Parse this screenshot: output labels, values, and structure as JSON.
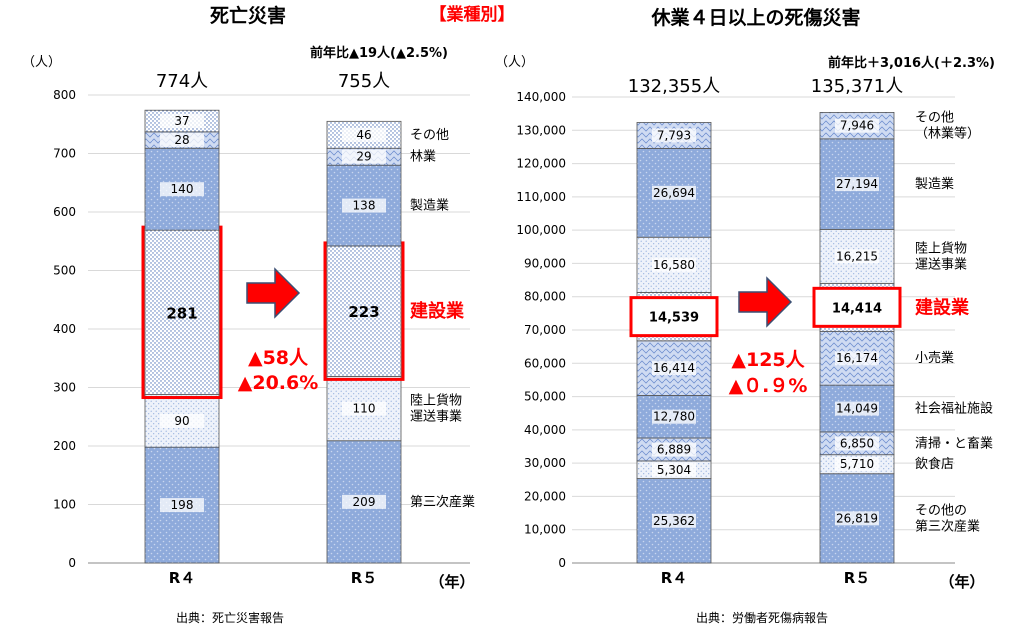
{
  "header": {
    "title_left": "死亡災害",
    "title_center": "【業種別】",
    "title_right": "休業４日以上の死傷災害"
  },
  "colors": {
    "accent_red": "#ff0000",
    "bar_blue": "#8eaadb",
    "bar_light": "#e8eef9",
    "bar_dark_line": "#2f4f8f",
    "arrow_fill": "#ff0000",
    "arrow_outline": "#3b4f73"
  },
  "chart_data": [
    {
      "type": "bar",
      "stacked": true,
      "unit_label": "（人）",
      "xunit_label": "（年）",
      "yticks": [
        "0",
        "100",
        "200",
        "300",
        "400",
        "500",
        "600",
        "700",
        "800"
      ],
      "ylim": [
        0,
        800
      ],
      "categories": [
        "R４",
        "R５"
      ],
      "totals": [
        "774人",
        "755人"
      ],
      "change_note": "前年比▲19人(▲2.5%)",
      "series": [
        {
          "name": "第三次産業",
          "values": [
            198,
            209
          ],
          "labels": [
            "198",
            "209"
          ]
        },
        {
          "name": "陸上貨物\n運送事業",
          "values": [
            90,
            110
          ],
          "labels": [
            "90",
            "110"
          ]
        },
        {
          "name": "建設業",
          "values": [
            281,
            223
          ],
          "labels": [
            "281",
            "223"
          ],
          "highlight": true
        },
        {
          "name": "製造業",
          "values": [
            140,
            138
          ],
          "labels": [
            "140",
            "138"
          ]
        },
        {
          "name": "林業",
          "values": [
            28,
            29
          ],
          "labels": [
            "28",
            "29"
          ]
        },
        {
          "name": "その他",
          "values": [
            37,
            46
          ],
          "labels": [
            "37",
            "46"
          ]
        }
      ],
      "highlight_change": [
        "▲58人",
        "▲20.6%"
      ],
      "source": "出典：死亡災害報告"
    },
    {
      "type": "bar",
      "stacked": true,
      "unit_label": "（人）",
      "xunit_label": "（年）",
      "yticks": [
        "0",
        "10,000",
        "20,000",
        "30,000",
        "40,000",
        "50,000",
        "60,000",
        "70,000",
        "80,000",
        "90,000",
        "100,000",
        "110,000",
        "120,000",
        "130,000",
        "140,000"
      ],
      "ylim": [
        0,
        140000
      ],
      "categories": [
        "R４",
        "R５"
      ],
      "totals": [
        "132,355人",
        "135,371人"
      ],
      "change_note": "前年比＋3,016人(＋2.3%)",
      "series": [
        {
          "name": "その他の\n第三次産業",
          "values": [
            25362,
            26819
          ],
          "labels": [
            "25,362",
            "26,819"
          ]
        },
        {
          "name": "飲食店",
          "values": [
            5304,
            5710
          ],
          "labels": [
            "5,304",
            "5,710"
          ]
        },
        {
          "name": "清掃・と畜業",
          "values": [
            6889,
            6850
          ],
          "labels": [
            "6,889",
            "6,850"
          ]
        },
        {
          "name": "社会福祉施設",
          "values": [
            12780,
            14049
          ],
          "labels": [
            "12,780",
            "14,049"
          ]
        },
        {
          "name": "小売業",
          "values": [
            16414,
            16174
          ],
          "labels": [
            "16,414",
            "16,174"
          ]
        },
        {
          "name": "建設業",
          "values": [
            14539,
            14414
          ],
          "labels": [
            "14,539",
            "14,414"
          ],
          "highlight": true
        },
        {
          "name": "陸上貨物\n運送事業",
          "values": [
            16580,
            16215
          ],
          "labels": [
            "16,580",
            "16,215"
          ]
        },
        {
          "name": "製造業",
          "values": [
            26694,
            27194
          ],
          "labels": [
            "26,694",
            "27,194"
          ]
        },
        {
          "name": "その他\n（林業等）",
          "values": [
            7793,
            7946
          ],
          "labels": [
            "7,793",
            "7,946"
          ]
        }
      ],
      "highlight_change": [
        "▲125人",
        "▲０.９%"
      ],
      "source": "出典：労働者死傷病報告"
    }
  ]
}
